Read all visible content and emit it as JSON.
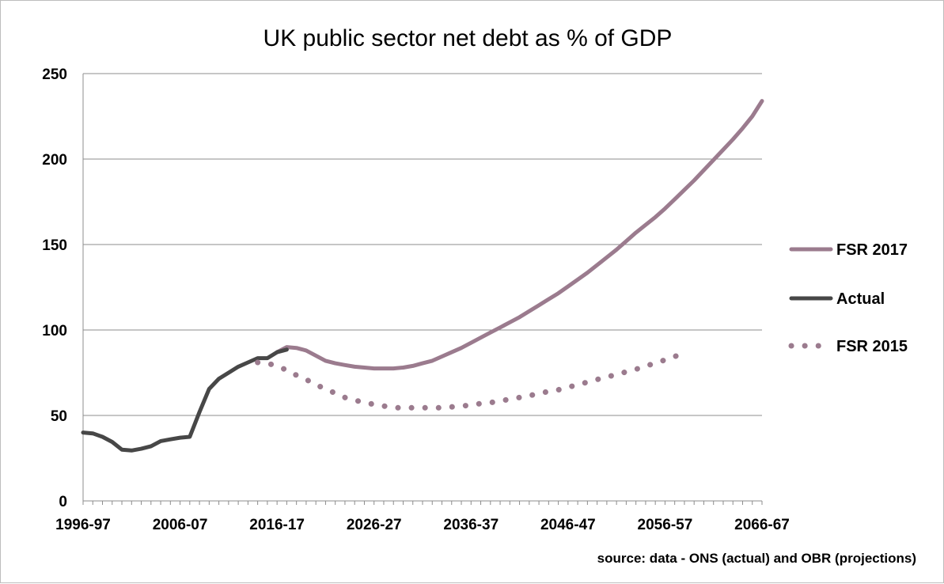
{
  "chart_data": {
    "type": "line",
    "title": "UK public sector net debt as % of GDP",
    "xlabel": "",
    "ylabel": "",
    "ylim": [
      0,
      250
    ],
    "yticks": [
      0,
      50,
      100,
      150,
      200,
      250
    ],
    "x_start_year": 1996,
    "x_end_year": 2066,
    "xtick_labels": [
      "1996-97",
      "2006-07",
      "2016-17",
      "2026-27",
      "2036-37",
      "2046-47",
      "2056-57",
      "2066-67"
    ],
    "grid": true,
    "legend_position": "right",
    "source": "source: data - ONS (actual) and OBR  (projections)",
    "series": [
      {
        "name": "FSR 2017",
        "style": "solid",
        "color": "#9b7b8e",
        "start_year": 2016,
        "values": [
          87,
          90,
          89.5,
          88,
          85,
          82,
          80.5,
          79.5,
          78.5,
          78,
          77.5,
          77.5,
          77.5,
          78,
          79,
          80.5,
          82,
          84.5,
          87,
          89.5,
          92.5,
          95.5,
          98.5,
          101.5,
          104.5,
          107.5,
          111,
          114.5,
          118,
          121.5,
          125.5,
          129.5,
          133.5,
          138,
          142.5,
          147,
          152,
          157,
          161.5,
          166,
          171,
          176.5,
          182,
          187.5,
          193.5,
          199.5,
          205.5,
          211.5,
          218,
          225,
          234
        ]
      },
      {
        "name": "Actual",
        "style": "solid",
        "color": "#474747",
        "start_year": 1996,
        "values": [
          40,
          39.5,
          37.5,
          34.5,
          30,
          29.5,
          30.5,
          32,
          35,
          36,
          37,
          37.5,
          52,
          65.5,
          71.5,
          75,
          78.5,
          81,
          83.5,
          83.5,
          87,
          88.5
        ]
      },
      {
        "name": "FSR 2015",
        "style": "dotted",
        "color": "#9b7b8e",
        "start_year": 2014,
        "values": [
          81,
          80.5,
          79,
          76.5,
          73.5,
          71,
          68,
          65.5,
          63,
          60.5,
          59,
          57.5,
          56.5,
          55.5,
          54.5,
          54.5,
          54.5,
          54.5,
          54.5,
          54.5,
          55,
          55.5,
          56,
          57,
          57.5,
          58.5,
          59.5,
          60.5,
          61.5,
          63,
          64,
          65,
          66.5,
          68,
          69.5,
          71,
          72.5,
          74,
          75.5,
          77,
          79,
          80.5,
          82.5,
          84.5,
          86.5
        ]
      }
    ]
  }
}
